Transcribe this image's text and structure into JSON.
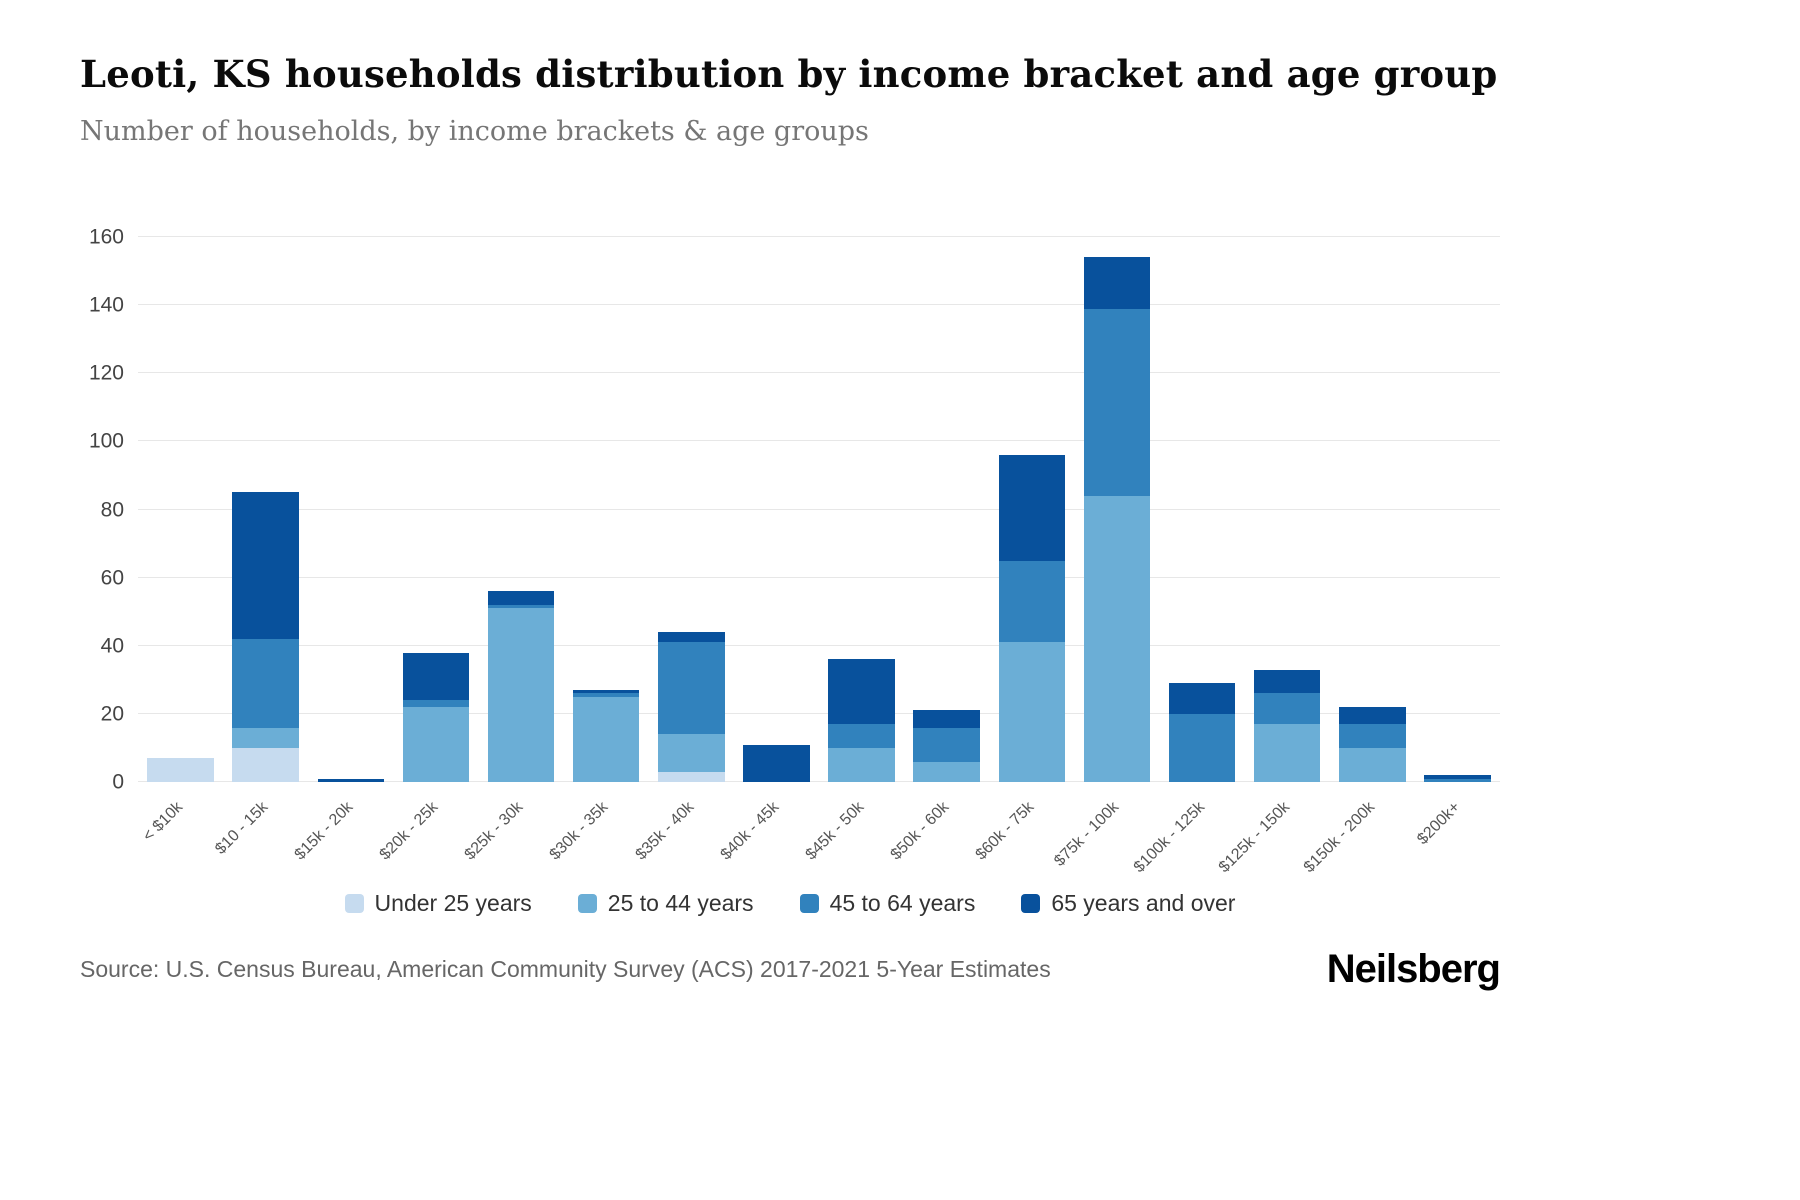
{
  "header": {
    "title": "Leoti, KS households distribution by income bracket and age group",
    "subtitle": "Number of households, by income brackets & age groups"
  },
  "chart_data": {
    "type": "bar",
    "stacked": true,
    "title": "Leoti, KS households distribution by income bracket and age group",
    "xlabel": "",
    "ylabel": "",
    "ylim": [
      0,
      160
    ],
    "yticks": [
      0,
      20,
      40,
      60,
      80,
      100,
      120,
      140,
      160
    ],
    "grid": true,
    "legend_position": "bottom",
    "categories": [
      "< $10k",
      "$10 - 15k",
      "$15k - 20k",
      "$20k - 25k",
      "$25k - 30k",
      "$30k - 35k",
      "$35k - 40k",
      "$40k - 45k",
      "$45k - 50k",
      "$50k - 60k",
      "$60k - 75k",
      "$75k - 100k",
      "$100k - 125k",
      "$125k - 150k",
      "$150k - 200k",
      "$200k+"
    ],
    "series": [
      {
        "name": "Under 25 years",
        "color": "#c6dbef",
        "values": [
          7,
          10,
          0,
          0,
          0,
          0,
          3,
          0,
          0,
          0,
          0,
          0,
          0,
          0,
          0,
          0
        ]
      },
      {
        "name": "25 to 44 years",
        "color": "#6baed6",
        "values": [
          0,
          6,
          0,
          22,
          51,
          25,
          11,
          0,
          10,
          6,
          41,
          84,
          0,
          17,
          10,
          0
        ]
      },
      {
        "name": "45 to 64 years",
        "color": "#3182bd",
        "values": [
          0,
          26,
          0,
          2,
          1,
          1,
          27,
          0,
          7,
          10,
          24,
          55,
          20,
          9,
          7,
          1
        ]
      },
      {
        "name": "65 years and over",
        "color": "#08519c",
        "values": [
          0,
          43,
          1,
          14,
          4,
          1,
          3,
          11,
          19,
          5,
          31,
          15,
          9,
          7,
          5,
          1
        ]
      }
    ]
  },
  "footer": {
    "source": "Source: U.S. Census Bureau, American Community Survey (ACS) 2017-2021 5-Year Estimates",
    "brand": "Neilsberg"
  }
}
